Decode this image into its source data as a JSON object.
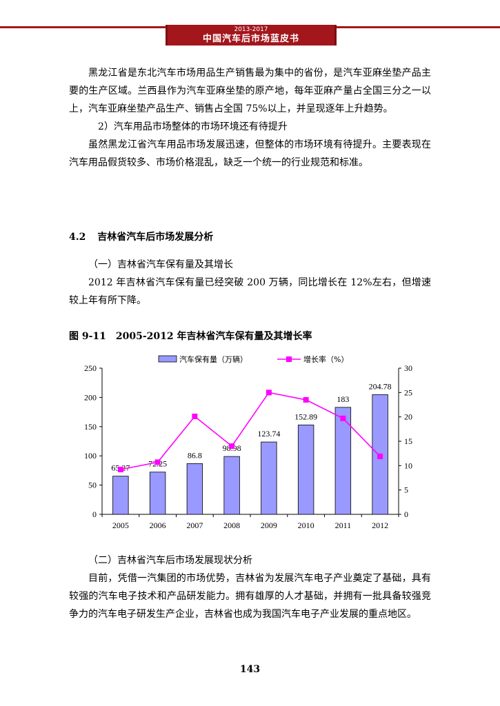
{
  "header": {
    "years": "2013-2017",
    "title": "中国汽车后市场蓝皮书"
  },
  "paragraphs_top": [
    "黑龙江省是东北汽车市场用品生产销售最为集中的省份，是汽车亚麻坐垫产品主要的生产区域。兰西县作为汽车亚麻坐垫的原产地，每年亚麻产量占全国三分之一以上，汽车亚麻坐垫产品生产、销售占全国 75%以上，并呈现逐年上升趋势。",
    "2）汽车用品市场整体的市场环境还有待提升",
    "虽然黑龙江省汽车用品市场发展迅速，但整体的市场环境有待提升。主要表现在汽车用品假货较多、市场价格混乱，缺乏一个统一的行业规范和标准。"
  ],
  "section": {
    "number": "4.2",
    "title": "吉林省汽车后市场发展分析"
  },
  "sub1": "（一）吉林省汽车保有量及其增长",
  "para_sub1": "2012 年吉林省汽车保有量已经突破 200 万辆，同比增长在 12%左右，但增速较上年有所下降。",
  "figure_title": "图 9-11　2005-2012 年吉林省汽车保有量及其增长率",
  "chart_data": {
    "type": "bar+line",
    "categories": [
      "2005",
      "2006",
      "2007",
      "2008",
      "2009",
      "2010",
      "2011",
      "2012"
    ],
    "series": [
      {
        "name": "汽车保有量（万辆）",
        "type": "bar",
        "axis": "left",
        "values": [
          65.27,
          72.25,
          86.8,
          98.98,
          123.74,
          152.89,
          183,
          204.78
        ],
        "labels": [
          "65.27",
          "72.25",
          "86.8",
          "98.98",
          "123.74",
          "152.89",
          "183",
          "204.78"
        ],
        "color": "#9999ff"
      },
      {
        "name": "增长率（%）",
        "type": "line",
        "axis": "right",
        "values": [
          9.2,
          10.7,
          20.1,
          14.0,
          25.0,
          23.5,
          19.7,
          11.9
        ],
        "color": "#ff00ff"
      }
    ],
    "y_left": {
      "min": 0,
      "max": 250,
      "ticks": [
        "0",
        "50",
        "100",
        "150",
        "200",
        "250"
      ]
    },
    "y_right": {
      "min": 0,
      "max": 30,
      "ticks": [
        "0",
        "5",
        "10",
        "15",
        "20",
        "25",
        "30"
      ]
    },
    "legend_position": "top-center",
    "grid": false
  },
  "sub2": "（二）吉林省汽车后市场发展现状分析",
  "para_sub2": "目前，凭借一汽集团的市场优势，吉林省为发展汽车电子产业奠定了基础，具有较强的汽车电子技术和产品研发能力。拥有雄厚的人才基础，并拥有一批具备较强竞争力的汽车电子研发生产企业，吉林省也成为我国汽车电子产业发展的重点地区。",
  "page_number": "143",
  "colors": {
    "header": "#a3161c",
    "bar": "#9999ff",
    "line": "#ff00ff"
  }
}
